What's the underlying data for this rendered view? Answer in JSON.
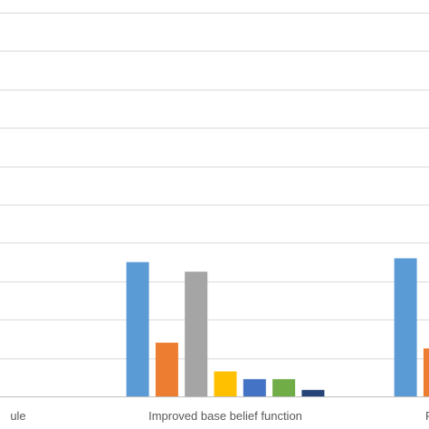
{
  "chart_data": {
    "type": "bar",
    "categories": [
      "ule",
      "Improved base belief function",
      "P"
    ],
    "series": [
      {
        "color": "#5B9BD5",
        "values": [
          null,
          0.35,
          0.36
        ]
      },
      {
        "color": "#ED7D31",
        "values": [
          null,
          0.14,
          0.125
        ]
      },
      {
        "color": "#A5A5A5",
        "values": [
          null,
          0.325,
          null
        ]
      },
      {
        "color": "#FFC000",
        "values": [
          null,
          0.065,
          null
        ]
      },
      {
        "color": "#4472C4",
        "values": [
          null,
          0.045,
          null
        ]
      },
      {
        "color": "#70AD47",
        "values": [
          null,
          0.045,
          null
        ]
      },
      {
        "color": "#264478",
        "values": [
          null,
          0.017,
          null
        ]
      }
    ],
    "ylim": [
      0,
      1.0
    ],
    "grid": true,
    "gridline_color": "#D9D9D9",
    "axis_color": "#BFBFBF"
  }
}
